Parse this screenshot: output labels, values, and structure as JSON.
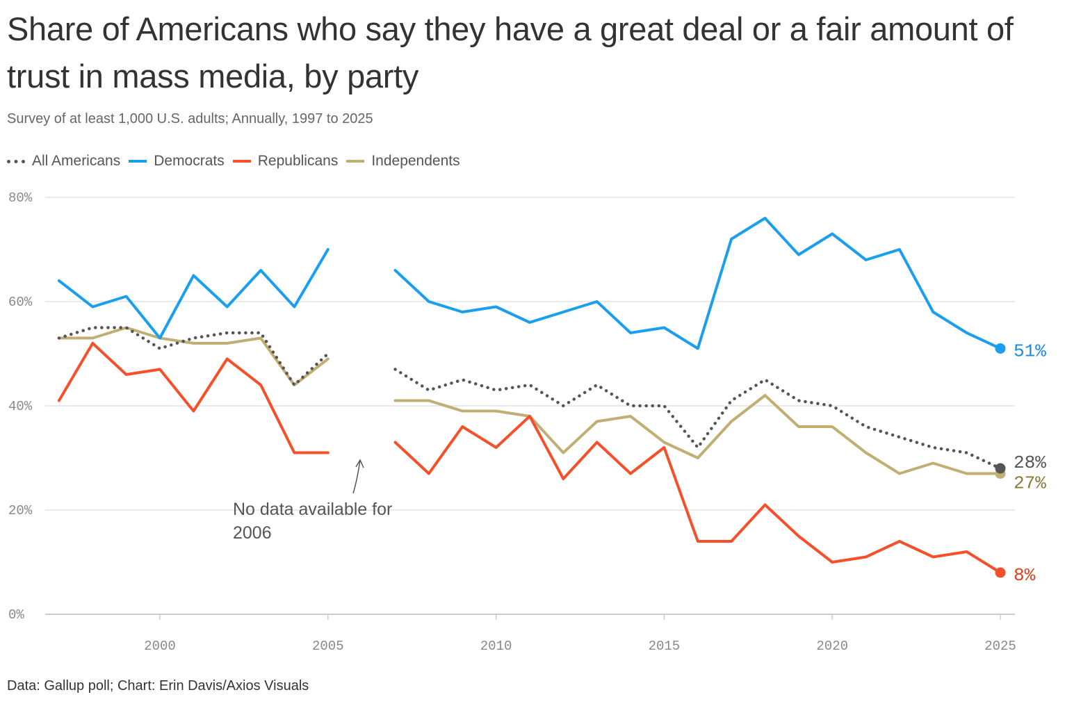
{
  "title": "Share of Americans who say they have a great deal or a fair amount of trust in mass media, by party",
  "subtitle": "Survey of at least 1,000 U.S. adults; Annually, 1997 to 2025",
  "footer": "Data: Gallup poll; Chart: Erin Davis/Axios Visuals",
  "legend": [
    {
      "label": "All Americans",
      "color": "#555555",
      "style": "dotted"
    },
    {
      "label": "Democrats",
      "color": "#1a9ff0",
      "style": "solid"
    },
    {
      "label": "Republicans",
      "color": "#f5502a",
      "style": "solid"
    },
    {
      "label": "Independents",
      "color": "#bfaf72",
      "style": "solid"
    }
  ],
  "chart_data": {
    "type": "line",
    "title": "Share of Americans who say they have a great deal or a fair amount of trust in mass media, by party",
    "xlabel": "",
    "ylabel": "",
    "xlim": [
      1997,
      2025
    ],
    "ylim": [
      0,
      80
    ],
    "x_ticks": [
      2000,
      2005,
      2010,
      2015,
      2020,
      2025
    ],
    "x_tick_labels": [
      "2000",
      "2005",
      "2010",
      "2015",
      "2020",
      "2025"
    ],
    "y_ticks": [
      0,
      20,
      40,
      60,
      80
    ],
    "y_tick_labels": [
      "0%",
      "20%",
      "40%",
      "60%",
      "80%"
    ],
    "grid": "horizontal",
    "x": [
      1997,
      1998,
      1999,
      2000,
      2001,
      2002,
      2003,
      2004,
      2005,
      2006,
      2007,
      2008,
      2009,
      2010,
      2011,
      2012,
      2013,
      2014,
      2015,
      2016,
      2017,
      2018,
      2019,
      2020,
      2021,
      2022,
      2023,
      2024,
      2025
    ],
    "series": [
      {
        "name": "All Americans",
        "color": "#555555",
        "style": "dotted",
        "end_label": "28%",
        "end_label_color": "#555555",
        "values": [
          53,
          55,
          55,
          51,
          53,
          54,
          54,
          44,
          50,
          null,
          47,
          43,
          45,
          43,
          44,
          40,
          44,
          40,
          40,
          32,
          41,
          45,
          41,
          40,
          36,
          34,
          32,
          31,
          28
        ]
      },
      {
        "name": "Democrats",
        "color": "#1a9ff0",
        "style": "solid",
        "end_label": "51%",
        "end_label_color": "#1a8ae0",
        "values": [
          64,
          59,
          61,
          53,
          65,
          59,
          66,
          59,
          70,
          null,
          66,
          60,
          58,
          59,
          56,
          58,
          60,
          54,
          55,
          51,
          72,
          76,
          69,
          73,
          68,
          70,
          58,
          54,
          51
        ]
      },
      {
        "name": "Republicans",
        "color": "#f5502a",
        "style": "solid",
        "end_label": "8%",
        "end_label_color": "#e0401a",
        "values": [
          41,
          52,
          46,
          47,
          39,
          49,
          44,
          31,
          31,
          null,
          33,
          27,
          36,
          32,
          38,
          26,
          33,
          27,
          32,
          14,
          14,
          21,
          15,
          10,
          11,
          14,
          11,
          12,
          8
        ]
      },
      {
        "name": "Independents",
        "color": "#bfaf72",
        "style": "solid",
        "end_label": "27%",
        "end_label_color": "#8a7a3a",
        "values": [
          53,
          53,
          55,
          53,
          52,
          52,
          53,
          44,
          49,
          null,
          41,
          41,
          39,
          39,
          38,
          31,
          37,
          38,
          33,
          30,
          37,
          42,
          36,
          36,
          31,
          27,
          29,
          27,
          27
        ]
      }
    ],
    "annotations": [
      {
        "text_line1": "No data available for",
        "text_line2": "2006",
        "x": 2006
      }
    ]
  }
}
